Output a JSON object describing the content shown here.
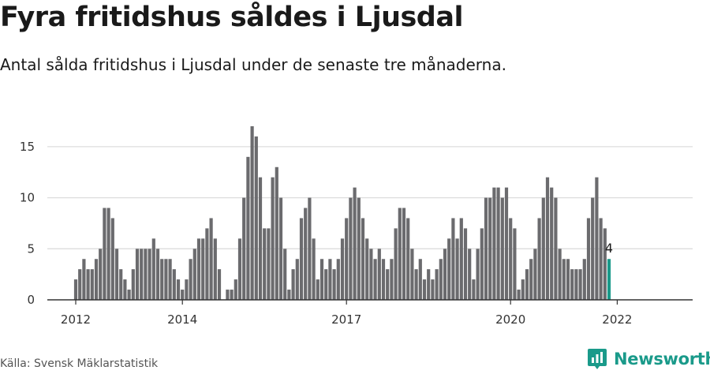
{
  "header": {
    "title": "Fyra fritidshus såldes i Ljusdal",
    "subtitle": "Antal sålda fritidshus i Ljusdal under de senaste tre månaderna."
  },
  "footer": {
    "source": "Källa: Svensk Mäklarstatistik",
    "brand": "Newsworthy"
  },
  "colors": {
    "bar": "#6b6b6e",
    "highlight": "#1a9a8a",
    "grid": "#dddddd",
    "axis": "#333333"
  },
  "chart_data": {
    "type": "bar",
    "title": "Fyra fritidshus såldes i Ljusdal",
    "xlabel": "",
    "ylabel": "",
    "ylim": [
      0,
      17
    ],
    "yticks": [
      0,
      5,
      10,
      15
    ],
    "xticks": [
      "2012",
      "2014",
      "2017",
      "2020",
      "2022"
    ],
    "grid": true,
    "highlight_last": true,
    "last_value_label": "4",
    "values": [
      2,
      3,
      4,
      3,
      3,
      4,
      5,
      9,
      9,
      8,
      5,
      3,
      2,
      1,
      3,
      5,
      5,
      5,
      5,
      6,
      5,
      4,
      4,
      4,
      3,
      2,
      1,
      2,
      4,
      5,
      6,
      6,
      7,
      8,
      6,
      3,
      0,
      1,
      1,
      2,
      6,
      10,
      14,
      17,
      16,
      12,
      7,
      7,
      12,
      13,
      10,
      5,
      1,
      3,
      4,
      8,
      9,
      10,
      6,
      2,
      4,
      3,
      4,
      3,
      4,
      6,
      8,
      10,
      11,
      10,
      8,
      6,
      5,
      4,
      5,
      4,
      3,
      4,
      7,
      9,
      9,
      8,
      5,
      3,
      4,
      2,
      3,
      2,
      3,
      4,
      5,
      6,
      8,
      6,
      8,
      7,
      5,
      2,
      5,
      7,
      10,
      10,
      11,
      11,
      10,
      11,
      8,
      7,
      1,
      2,
      3,
      4,
      5,
      8,
      10,
      12,
      11,
      10,
      5,
      4,
      4,
      3,
      3,
      3,
      4,
      8,
      10,
      12,
      8,
      7,
      4
    ]
  }
}
